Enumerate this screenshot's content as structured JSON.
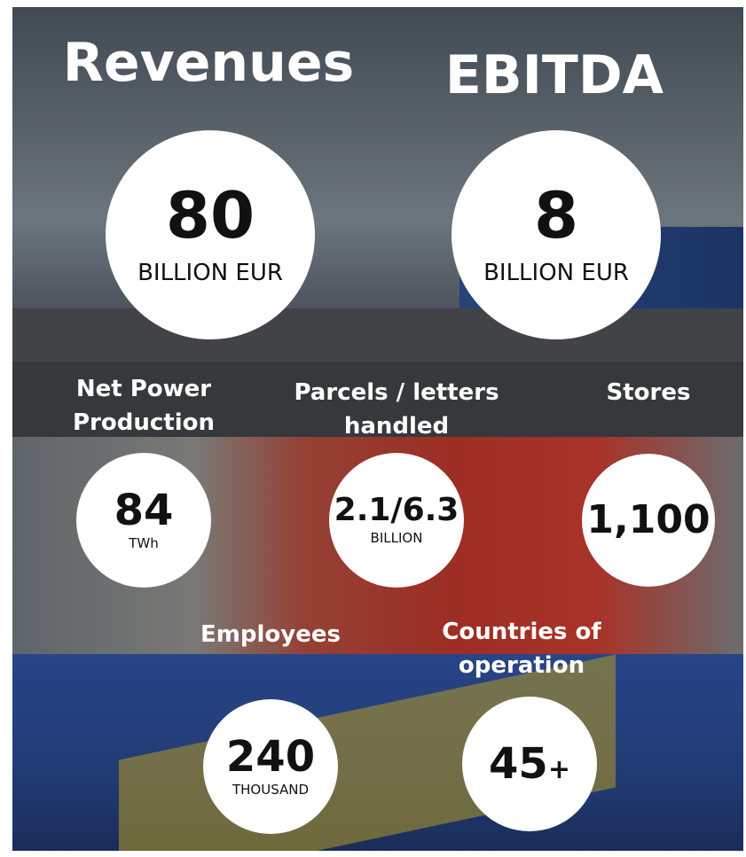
{
  "headline": [
    {
      "title": "Revenues",
      "value": "80",
      "unit": "BILLION EUR"
    },
    {
      "title": "EBITDA",
      "value": "8",
      "unit": "BILLION EUR"
    }
  ],
  "metrics": [
    {
      "label": [
        "Net Power",
        "Production"
      ],
      "value": "84",
      "unit": "TWh"
    },
    {
      "label": [
        "Parcels / letters",
        "handled"
      ],
      "value": "2.1/6.3",
      "unit": "BILLION"
    },
    {
      "label": [
        "Stores"
      ],
      "value": "1,100"
    },
    {
      "label": [
        "Employees"
      ],
      "value": "240",
      "unit": "THOUSAND"
    },
    {
      "label": [
        "Countries of",
        "operation"
      ],
      "value": "45",
      "suffix": "+"
    }
  ]
}
